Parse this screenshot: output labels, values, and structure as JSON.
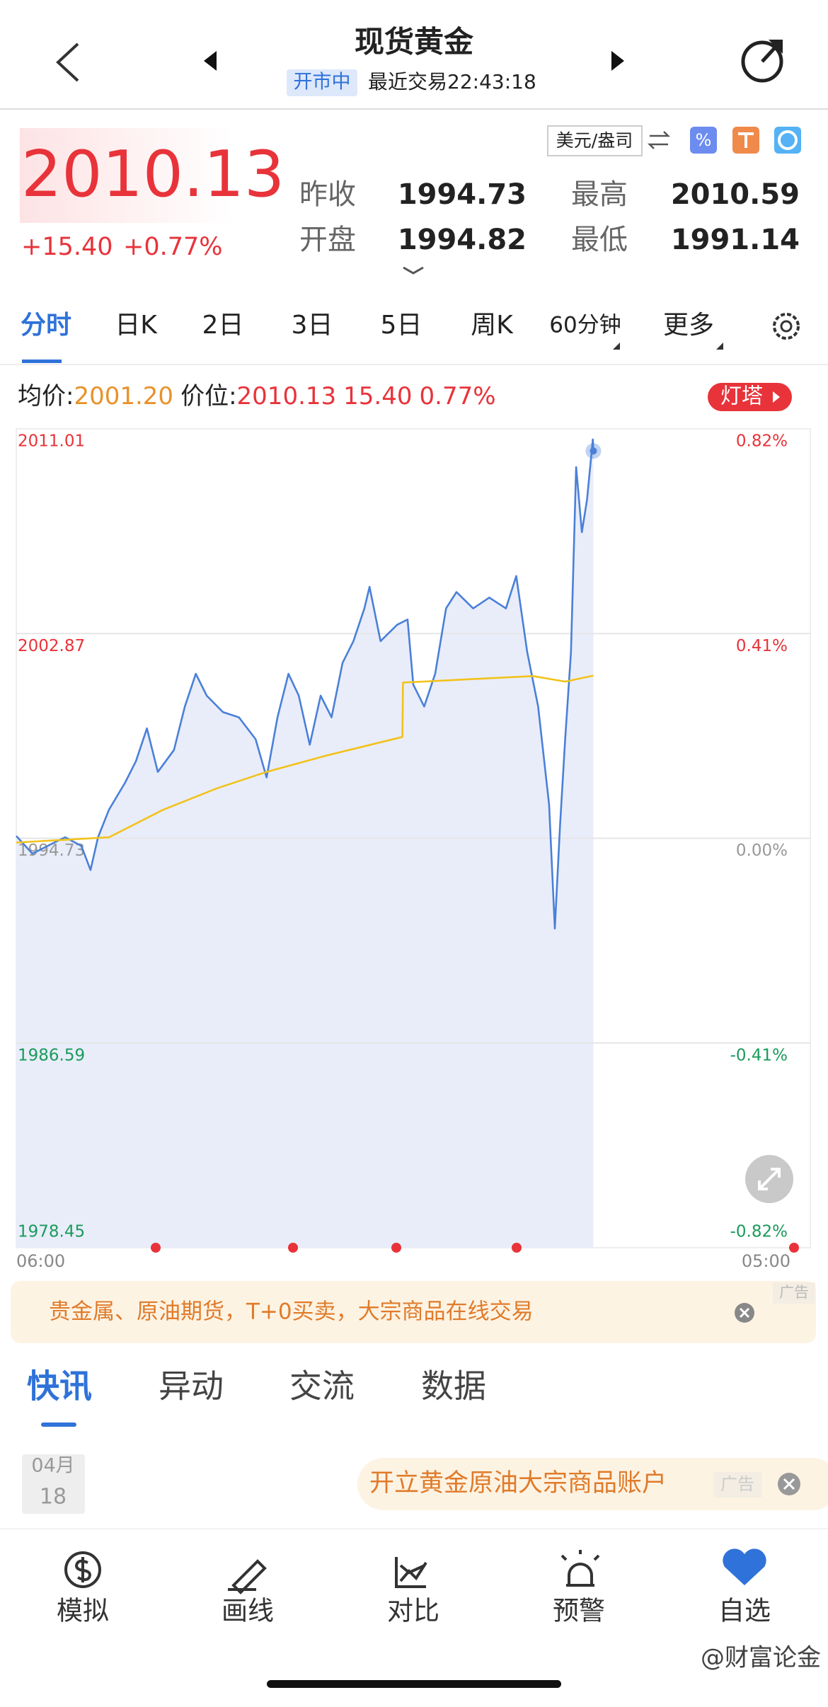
{
  "header": {
    "title": "现货黄金",
    "status": "开市中",
    "last_trade": "最近交易22:43:18"
  },
  "quote": {
    "price": "2010.13",
    "change": "+15.40",
    "change_pct": "+0.77%",
    "unit": "美元/盎司",
    "stats": [
      {
        "label": "昨收",
        "value": "1994.73"
      },
      {
        "label": "开盘",
        "value": "1994.82"
      },
      {
        "label": "最高",
        "value": "2010.59"
      },
      {
        "label": "最低",
        "value": "1991.14"
      }
    ]
  },
  "tabs": [
    "分时",
    "日K",
    "2日",
    "3日",
    "5日",
    "周K",
    "60分钟",
    "更多"
  ],
  "info": {
    "avg_label": "均价:",
    "avg_value": "2001.20",
    "price_label": "价位:",
    "price_value": "2010.13",
    "change": "15.40",
    "change_pct": "0.77%",
    "badge": "灯塔"
  },
  "chart_data": {
    "type": "line",
    "xlim": [
      "06:00",
      "05:00"
    ],
    "xticks": [
      "06:00",
      "05:00"
    ],
    "ylim": [
      1978.45,
      2011.01
    ],
    "yticks": [
      2011.01,
      2002.87,
      1994.73,
      1986.59,
      1978.45
    ],
    "y2lim": [
      -0.82,
      0.82
    ],
    "y2ticks": [
      {
        "value": 0.82,
        "label": "0.82%"
      },
      {
        "value": 0.41,
        "label": "0.41%"
      },
      {
        "value": 0.0,
        "label": "0.00%"
      },
      {
        "value": -0.41,
        "label": "-0.41%"
      },
      {
        "value": -0.82,
        "label": "-0.82%"
      }
    ],
    "grid": true,
    "series": [
      {
        "color": "#4a80d8",
        "area": "#e9edfa",
        "x": [
          "06:00",
          "06:28",
          "07:06",
          "07:25",
          "07:53",
          "08:09",
          "08:22",
          "08:41",
          "09:09",
          "09:28",
          "09:47",
          "10:06",
          "10:34",
          "10:53",
          "11:12",
          "11:31",
          "11:59",
          "12:27",
          "12:56",
          "13:15",
          "13:34",
          "13:53",
          "14:11",
          "14:30",
          "14:49",
          "15:08",
          "15:27",
          "15:46",
          "16:05",
          "16:14",
          "16:33",
          "17:02",
          "17:20",
          "17:30",
          "17:49",
          "18:08",
          "18:27",
          "18:45",
          "19:14",
          "19:42",
          "20:11",
          "20:29",
          "20:48",
          "21:07",
          "21:26",
          "21:36",
          "21:45",
          "21:54",
          "22:04",
          "22:13",
          "22:23",
          "22:32",
          "22:42",
          "22:43"
        ],
        "values": [
          1994.82,
          1994.12,
          1994.56,
          1994.77,
          1994.43,
          1993.47,
          1994.77,
          1995.86,
          1996.94,
          1997.8,
          1999.1,
          1997.37,
          1998.24,
          1999.97,
          2001.27,
          2000.4,
          1999.75,
          1999.54,
          1998.67,
          1997.15,
          1999.54,
          2001.27,
          2000.4,
          1998.45,
          2000.4,
          1999.54,
          2001.7,
          2002.57,
          2003.87,
          2004.73,
          2002.57,
          2003.22,
          2003.43,
          2000.84,
          1999.97,
          2001.27,
          2003.87,
          2004.52,
          2003.87,
          2004.3,
          2003.87,
          2005.16,
          2002.13,
          1999.97,
          1996.07,
          1991.14,
          1995.21,
          1998.67,
          2002.13,
          2009.49,
          2006.9,
          2008.2,
          2010.59,
          2010.13
        ]
      },
      {
        "color": "#f2c21b",
        "x": [
          "06:00",
          "08:41",
          "10:15",
          "11:49",
          "13:15",
          "14:59",
          "17:11",
          "17:12",
          "20:58",
          "21:54",
          "22:43"
        ],
        "values": [
          1994.56,
          1994.77,
          1995.86,
          1996.72,
          1997.37,
          1998.02,
          1998.76,
          2000.92,
          2001.18,
          2000.96,
          2001.2
        ]
      }
    ]
  },
  "ad": {
    "text": "贵金属、原油期货，T+0买卖，大宗商品在线交易",
    "tag": "广告"
  },
  "news_tabs": [
    "快讯",
    "异动",
    "交流",
    "数据"
  ],
  "news": {
    "month": "04月",
    "day": "18",
    "ad_text": "开立黄金原油大宗商品账户",
    "ad_tag": "广告"
  },
  "toolbar": [
    "模拟",
    "画线",
    "对比",
    "预警",
    "自选"
  ],
  "watermark": "@财富论金"
}
